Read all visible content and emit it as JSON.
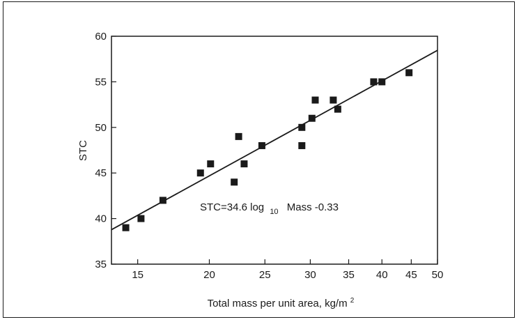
{
  "chart_data": {
    "type": "scatter",
    "title": "",
    "xlabel": "Total mass per unit area, kg/m",
    "xlabel_sup": "2",
    "ylabel": "STC",
    "x_scale": "log",
    "xlim": [
      13.5,
      50
    ],
    "ylim": [
      35,
      60
    ],
    "x_ticks": [
      15,
      20,
      25,
      30,
      35,
      40,
      45,
      50
    ],
    "y_ticks": [
      35,
      40,
      45,
      50,
      55,
      60
    ],
    "grid": false,
    "points": [
      {
        "x": 14.3,
        "y": 39
      },
      {
        "x": 15.2,
        "y": 40
      },
      {
        "x": 16.6,
        "y": 42
      },
      {
        "x": 19.3,
        "y": 45
      },
      {
        "x": 20.1,
        "y": 46
      },
      {
        "x": 22.1,
        "y": 44
      },
      {
        "x": 22.5,
        "y": 49
      },
      {
        "x": 23.0,
        "y": 46
      },
      {
        "x": 24.7,
        "y": 48
      },
      {
        "x": 29.0,
        "y": 48
      },
      {
        "x": 29.0,
        "y": 50
      },
      {
        "x": 30.2,
        "y": 51
      },
      {
        "x": 30.6,
        "y": 53
      },
      {
        "x": 32.9,
        "y": 53
      },
      {
        "x": 33.5,
        "y": 52
      },
      {
        "x": 38.7,
        "y": 55
      },
      {
        "x": 40.0,
        "y": 55
      },
      {
        "x": 44.6,
        "y": 56
      }
    ],
    "fit_line": {
      "slope": 34.6,
      "intercept": -0.33,
      "x_range": [
        13.5,
        50
      ]
    },
    "equation": {
      "prefix": "STC=34.6 log",
      "subscript": "10",
      "suffix": "Mass -0.33"
    },
    "colors": {
      "marker": "#1a1a1a",
      "line": "#1a1a1a",
      "axis": "#1a1a1a"
    }
  }
}
